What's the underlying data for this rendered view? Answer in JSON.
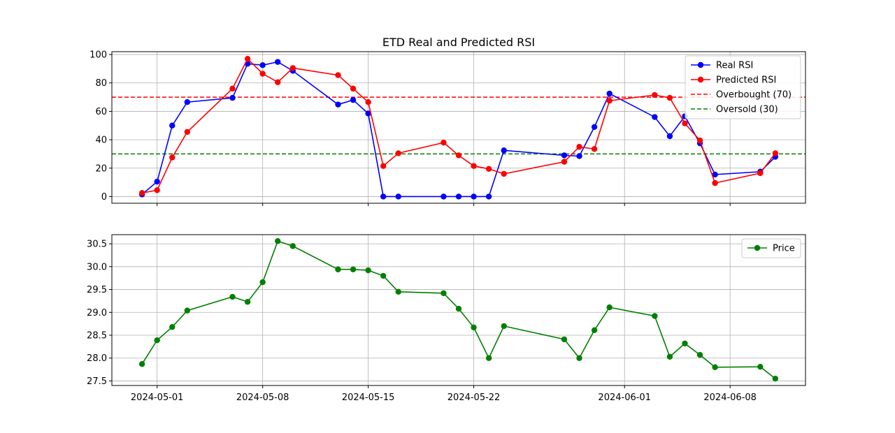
{
  "chart_data": [
    {
      "type": "line",
      "title": "ETD Real and Predicted RSI",
      "xlabel": "",
      "ylabel": "",
      "ylim": [
        -4.7,
        102
      ],
      "yticks": [
        0,
        20,
        40,
        60,
        80,
        100
      ],
      "grid": true,
      "legend_position": "top-right",
      "series": [
        {
          "name": "Real RSI",
          "color": "#0000ff",
          "points": [
            [
              "2024-04-30",
              1.5
            ],
            [
              "2024-05-01",
              10.5
            ],
            [
              "2024-05-02",
              50
            ],
            [
              "2024-05-03",
              66.5
            ],
            [
              "2024-05-06",
              69.5
            ],
            [
              "2024-05-07",
              93.5
            ],
            [
              "2024-05-08",
              92.5
            ],
            [
              "2024-05-09",
              94.8
            ],
            [
              "2024-05-10",
              88.5
            ],
            [
              "2024-05-13",
              64.8
            ],
            [
              "2024-05-14",
              68
            ],
            [
              "2024-05-15",
              58.5
            ],
            [
              "2024-05-16",
              0
            ],
            [
              "2024-05-17",
              0
            ],
            [
              "2024-05-20",
              0
            ],
            [
              "2024-05-21",
              0
            ],
            [
              "2024-05-22",
              0
            ],
            [
              "2024-05-23",
              0
            ],
            [
              "2024-05-24",
              32.5
            ],
            [
              "2024-05-28",
              29
            ],
            [
              "2024-05-29",
              28.5
            ],
            [
              "2024-05-30",
              49
            ],
            [
              "2024-05-31",
              72.5
            ],
            [
              "2024-06-03",
              56
            ],
            [
              "2024-06-04",
              42.5
            ],
            [
              "2024-06-05",
              56.5
            ],
            [
              "2024-06-06",
              37.5
            ],
            [
              "2024-06-07",
              15.5
            ],
            [
              "2024-06-10",
              17.5
            ],
            [
              "2024-06-11",
              28
            ]
          ]
        },
        {
          "name": "Predicted RSI",
          "color": "#ff0000",
          "points": [
            [
              "2024-04-30",
              2.5
            ],
            [
              "2024-05-01",
              4.5
            ],
            [
              "2024-05-02",
              27.5
            ],
            [
              "2024-05-03",
              45.5
            ],
            [
              "2024-05-06",
              76
            ],
            [
              "2024-05-07",
              97
            ],
            [
              "2024-05-08",
              86.5
            ],
            [
              "2024-05-09",
              80.5
            ],
            [
              "2024-05-10",
              90.5
            ],
            [
              "2024-05-13",
              85.5
            ],
            [
              "2024-05-14",
              76
            ],
            [
              "2024-05-15",
              66.5
            ],
            [
              "2024-05-16",
              21.5
            ],
            [
              "2024-05-17",
              30.5
            ],
            [
              "2024-05-20",
              38
            ],
            [
              "2024-05-21",
              29
            ],
            [
              "2024-05-22",
              21.5
            ],
            [
              "2024-05-23",
              19.5
            ],
            [
              "2024-05-24",
              16
            ],
            [
              "2024-05-28",
              24.5
            ],
            [
              "2024-05-29",
              35
            ],
            [
              "2024-05-30",
              33.5
            ],
            [
              "2024-05-31",
              67.5
            ],
            [
              "2024-06-03",
              71.5
            ],
            [
              "2024-06-04",
              69.5
            ],
            [
              "2024-06-05",
              51.5
            ],
            [
              "2024-06-06",
              39.5
            ],
            [
              "2024-06-07",
              9.5
            ],
            [
              "2024-06-10",
              16.5
            ],
            [
              "2024-06-11",
              30.5
            ]
          ]
        }
      ],
      "reference_lines": [
        {
          "name": "Overbought (70)",
          "value": 70,
          "color": "#ff0000"
        },
        {
          "name": "Oversold (30)",
          "value": 30,
          "color": "#008000"
        }
      ]
    },
    {
      "type": "line",
      "title": "",
      "xlabel": "",
      "ylabel": "",
      "ylim": [
        27.4,
        30.7
      ],
      "yticks": [
        27.5,
        28.0,
        28.5,
        29.0,
        29.5,
        30.0,
        30.5
      ],
      "grid": true,
      "legend_position": "top-right",
      "series": [
        {
          "name": "Price",
          "color": "#008000",
          "points": [
            [
              "2024-04-30",
              27.87
            ],
            [
              "2024-05-01",
              28.39
            ],
            [
              "2024-05-02",
              28.68
            ],
            [
              "2024-05-03",
              29.04
            ],
            [
              "2024-05-06",
              29.34
            ],
            [
              "2024-05-07",
              29.23
            ],
            [
              "2024-05-08",
              29.66
            ],
            [
              "2024-05-09",
              30.56
            ],
            [
              "2024-05-10",
              30.45
            ],
            [
              "2024-05-13",
              29.94
            ],
            [
              "2024-05-14",
              29.94
            ],
            [
              "2024-05-15",
              29.92
            ],
            [
              "2024-05-16",
              29.8
            ],
            [
              "2024-05-17",
              29.45
            ],
            [
              "2024-05-20",
              29.42
            ],
            [
              "2024-05-21",
              29.08
            ],
            [
              "2024-05-22",
              28.67
            ],
            [
              "2024-05-23",
              28.0
            ],
            [
              "2024-05-24",
              28.7
            ],
            [
              "2024-05-28",
              28.41
            ],
            [
              "2024-05-29",
              28.0
            ],
            [
              "2024-05-30",
              28.61
            ],
            [
              "2024-05-31",
              29.11
            ],
            [
              "2024-06-03",
              28.92
            ],
            [
              "2024-06-04",
              28.03
            ],
            [
              "2024-06-05",
              28.32
            ],
            [
              "2024-06-06",
              28.07
            ],
            [
              "2024-06-07",
              27.8
            ],
            [
              "2024-06-10",
              27.81
            ],
            [
              "2024-06-11",
              27.55
            ]
          ]
        }
      ]
    }
  ],
  "shared_x": {
    "xlim": [
      "2024-04-28",
      "2024-06-13"
    ],
    "xticks": [
      "2024-05-01",
      "2024-05-08",
      "2024-05-15",
      "2024-05-22",
      "2024-06-01",
      "2024-06-08"
    ]
  }
}
